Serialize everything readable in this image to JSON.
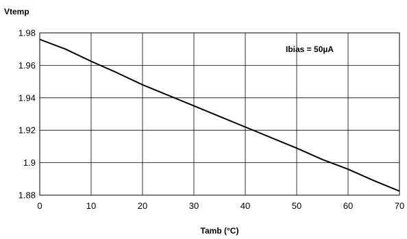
{
  "chart_data": {
    "type": "line",
    "title": "",
    "xlabel": "Tamb (°C)",
    "ylabel": "Vtemp",
    "xlim": [
      0,
      70
    ],
    "ylim": [
      1.88,
      1.98
    ],
    "xticks": [
      "0",
      "10",
      "20",
      "30",
      "40",
      "50",
      "60",
      "70"
    ],
    "yticks": [
      "1.88",
      "1.9",
      "1.92",
      "1.94",
      "1.96",
      "1.98"
    ],
    "grid": true,
    "legend": "none",
    "annotation": "Ibias = 50µA",
    "line_color": "#000000",
    "series": [
      {
        "x": [
          0,
          5,
          10,
          15,
          20,
          25,
          30,
          35,
          40,
          45,
          50,
          55,
          60,
          65,
          70
        ],
        "y": [
          1.976,
          1.97,
          1.9625,
          1.9555,
          1.948,
          1.9415,
          1.935,
          1.9285,
          1.922,
          1.9155,
          1.909,
          1.902,
          1.896,
          1.889,
          1.8825
        ]
      }
    ]
  }
}
